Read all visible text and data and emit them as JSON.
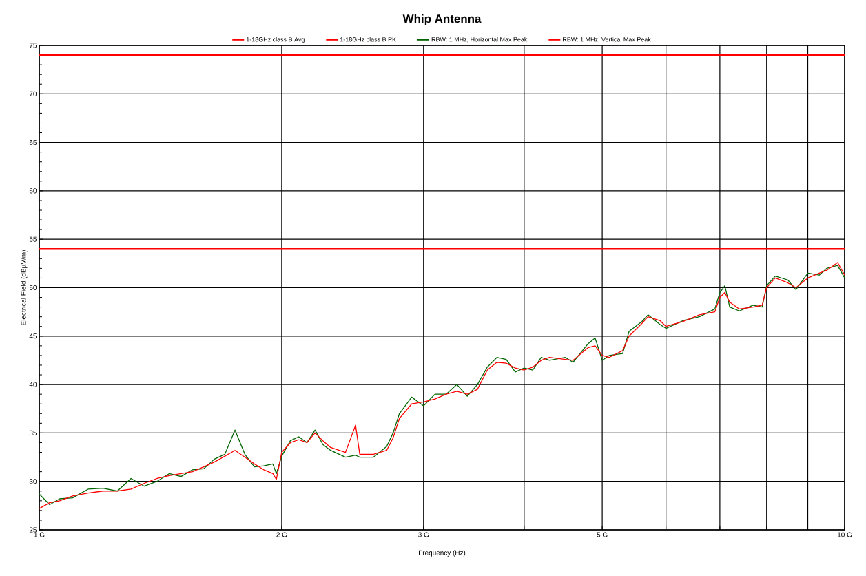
{
  "chart_data": {
    "type": "line",
    "title": "Whip Antenna",
    "xlabel": "Frequency (Hz)",
    "ylabel": "Electrical Field (dBµV/m)",
    "log": "x",
    "grid": true,
    "legend": "top",
    "marker": "none",
    "line_style": "solid",
    "xlim": [
      1,
      10
    ],
    "ylim": [
      25,
      75
    ],
    "xticks": [
      {
        "value": 1,
        "label": "1 G"
      },
      {
        "value": 2,
        "label": "2 G"
      },
      {
        "value": 3,
        "label": "3 G"
      },
      {
        "value": 4,
        "label": null
      },
      {
        "value": 5,
        "label": "5 G"
      },
      {
        "value": 6,
        "label": null
      },
      {
        "value": 7,
        "label": null
      },
      {
        "value": 8,
        "label": null
      },
      {
        "value": 9,
        "label": null
      },
      {
        "value": 10,
        "label": "10 G"
      }
    ],
    "yticks": [
      25,
      30,
      35,
      40,
      45,
      50,
      55,
      60,
      65,
      70,
      75
    ],
    "ref_lines": [
      {
        "axis": "y",
        "value": 54,
        "label": "1-18GHz class B Avg",
        "color": "#ff0000"
      },
      {
        "axis": "y",
        "value": 74,
        "label": "1-18GHz class B PK",
        "color": "#ff0000"
      }
    ],
    "x": [
      1.0,
      1.03,
      1.06,
      1.1,
      1.15,
      1.2,
      1.25,
      1.3,
      1.35,
      1.4,
      1.45,
      1.5,
      1.55,
      1.6,
      1.65,
      1.7,
      1.75,
      1.8,
      1.85,
      1.9,
      1.95,
      1.97,
      2.0,
      2.05,
      2.1,
      2.15,
      2.2,
      2.25,
      2.3,
      2.4,
      2.47,
      2.5,
      2.6,
      2.7,
      2.75,
      2.8,
      2.9,
      3.0,
      3.1,
      3.2,
      3.3,
      3.4,
      3.5,
      3.6,
      3.7,
      3.8,
      3.9,
      4.0,
      4.1,
      4.2,
      4.3,
      4.5,
      4.6,
      4.8,
      4.9,
      5.0,
      5.1,
      5.3,
      5.4,
      5.6,
      5.7,
      5.9,
      6.0,
      6.3,
      6.6,
      6.9,
      7.0,
      7.1,
      7.2,
      7.4,
      7.7,
      7.9,
      8.0,
      8.2,
      8.5,
      8.7,
      9.0,
      9.3,
      9.5,
      9.8,
      10.0
    ],
    "series": [
      {
        "name": "RBW: 1 MHz, Horizontal Max Peak",
        "color": "#006400",
        "values": [
          28.7,
          27.6,
          28.2,
          28.3,
          29.2,
          29.3,
          29.0,
          30.3,
          29.5,
          30.0,
          30.8,
          30.5,
          31.2,
          31.3,
          32.3,
          32.8,
          35.3,
          32.8,
          31.5,
          31.6,
          31.8,
          30.8,
          32.6,
          34.2,
          34.6,
          34.0,
          35.3,
          33.8,
          33.2,
          32.5,
          32.7,
          32.5,
          32.5,
          33.6,
          35.0,
          37.0,
          38.7,
          37.8,
          39.0,
          39.0,
          40.0,
          38.8,
          40.0,
          41.8,
          42.8,
          42.6,
          41.3,
          41.7,
          41.5,
          42.8,
          42.5,
          42.8,
          42.3,
          44.2,
          44.8,
          42.5,
          43.0,
          43.2,
          45.5,
          46.5,
          47.2,
          46.2,
          45.8,
          46.6,
          47.0,
          47.8,
          49.5,
          50.2,
          48.0,
          47.6,
          48.2,
          48.0,
          50.2,
          51.2,
          50.8,
          49.8,
          51.5,
          51.3,
          52.0,
          52.3,
          51.0
        ]
      },
      {
        "name": "RBW: 1 MHz, Vertical Max Peak",
        "color": "#ff0000",
        "values": [
          27.2,
          27.8,
          28.0,
          28.5,
          28.8,
          29.0,
          29.0,
          29.2,
          29.8,
          30.3,
          30.6,
          30.8,
          31.0,
          31.5,
          32.0,
          32.6,
          33.2,
          32.5,
          31.8,
          31.2,
          30.8,
          30.2,
          33.0,
          34.0,
          34.3,
          34.0,
          35.0,
          34.2,
          33.5,
          33.0,
          35.8,
          32.8,
          32.8,
          33.2,
          34.5,
          36.5,
          38.0,
          38.2,
          38.5,
          39.0,
          39.3,
          39.0,
          39.5,
          41.5,
          42.3,
          42.2,
          41.7,
          41.5,
          41.8,
          42.5,
          42.8,
          42.6,
          42.5,
          43.8,
          44.0,
          43.0,
          42.8,
          43.5,
          45.0,
          46.3,
          47.0,
          46.6,
          46.0,
          46.5,
          47.2,
          47.5,
          49.0,
          49.5,
          48.5,
          47.8,
          48.0,
          48.2,
          50.0,
          51.0,
          50.5,
          50.0,
          51.0,
          51.5,
          51.8,
          52.6,
          51.3
        ]
      }
    ]
  }
}
